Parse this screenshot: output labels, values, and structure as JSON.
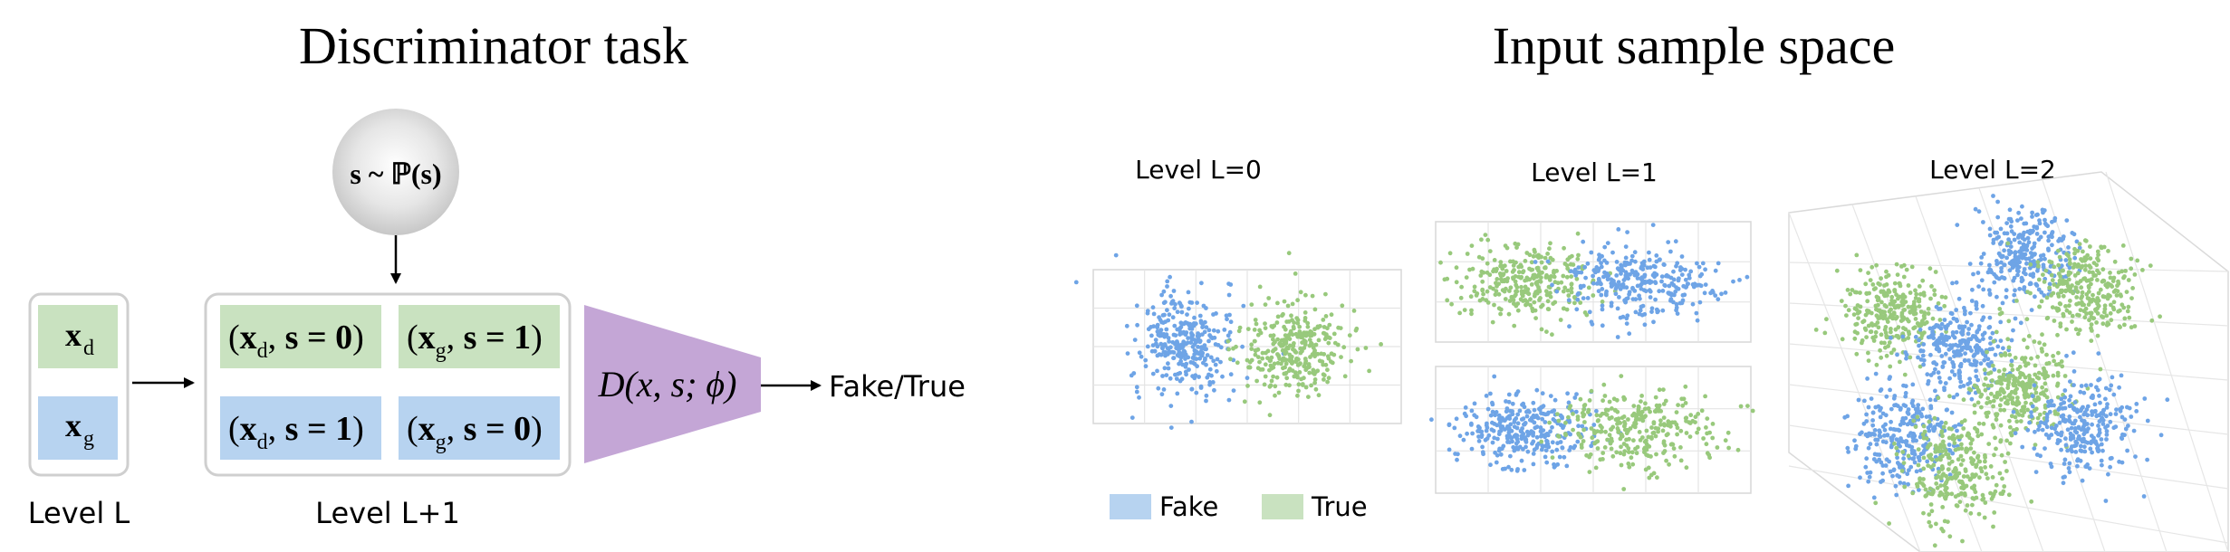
{
  "left_panel": {
    "title": "Discriminator task",
    "prior": "s ~ ℙ(s)",
    "level_l": {
      "label": "Level L",
      "items": [
        {
          "text": "x",
          "sub": "d",
          "kind": "true"
        },
        {
          "text": "x",
          "sub": "g",
          "kind": "fake"
        }
      ]
    },
    "level_l1": {
      "label": "Level L+1",
      "pairs": [
        {
          "x": "x",
          "sub": "d",
          "s": "s = 0",
          "kind": "true"
        },
        {
          "x": "x",
          "sub": "g",
          "s": "s = 1",
          "kind": "true"
        },
        {
          "x": "x",
          "sub": "d",
          "s": "s = 1",
          "kind": "fake"
        },
        {
          "x": "x",
          "sub": "g",
          "s": "s = 0",
          "kind": "fake"
        }
      ]
    },
    "discriminator": "D(x, s; ϕ)",
    "output": "Fake/True"
  },
  "right_panel": {
    "title": "Input sample space",
    "levels": [
      {
        "label": "Level L=0"
      },
      {
        "label": "Level L=1"
      },
      {
        "label": "Level L=2"
      }
    ],
    "legend": [
      {
        "label": "Fake",
        "color": "#7aaee8"
      },
      {
        "label": "True",
        "color": "#9ccc84"
      }
    ]
  },
  "colors": {
    "fake_box": "#b7d3f0",
    "true_box": "#c9e2c0",
    "discriminator": "#c4a6d6",
    "prior_circle": "#d4d4d4",
    "fake_point": "#6ea4e6",
    "true_point": "#98c97c"
  }
}
